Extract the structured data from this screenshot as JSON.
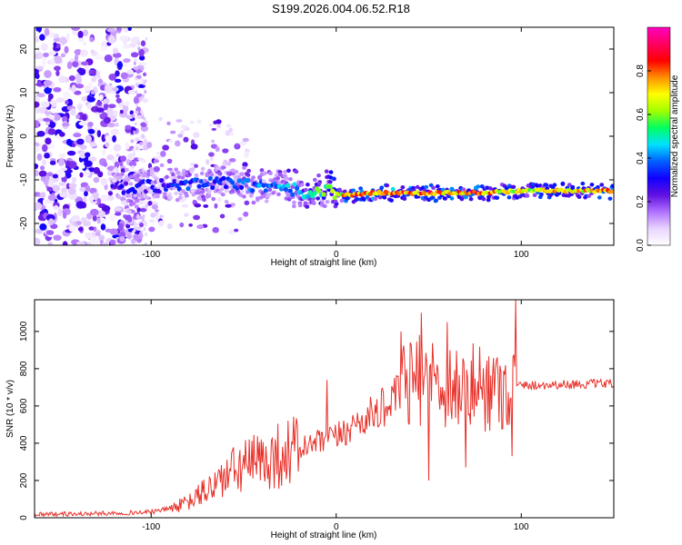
{
  "title": "S199.2026.004.06.52.R18",
  "chart_data": [
    {
      "type": "heatmap",
      "title": "S199.2026.004.06.52.R18",
      "xlabel": "Height of straight line (km)",
      "ylabel": "Frequency (Hz)",
      "xlim": [
        -163,
        150
      ],
      "ylim": [
        -25,
        25
      ],
      "xticks": [
        -100,
        0,
        100
      ],
      "yticks": [
        -20,
        -10,
        0,
        10,
        20
      ],
      "colorbar": {
        "label": "Normalized spectral amplitude",
        "range": [
          0,
          1
        ],
        "ticks": [
          0.0,
          0.2,
          0.4,
          0.6,
          0.8
        ],
        "colormap": [
          "#ffffff",
          "#e8d4ff",
          "#b070ff",
          "#6010e0",
          "#1000ff",
          "#0060ff",
          "#00e0ff",
          "#00ff60",
          "#a0ff00",
          "#ffff00",
          "#ff9000",
          "#ff0000",
          "#ff0060",
          "#ff00c0"
        ]
      },
      "ridge": {
        "x": [
          -120,
          -100,
          -80,
          -60,
          -40,
          -25,
          -15,
          -5,
          5,
          20,
          40,
          60,
          80,
          100,
          120,
          150
        ],
        "freq": [
          -12,
          -11.5,
          -11,
          -10.5,
          -11.5,
          -12,
          -13,
          -12.5,
          -13.5,
          -13,
          -13,
          -13,
          -13,
          -12.5,
          -12.5,
          -12.5
        ],
        "peak_amplitude": [
          0.3,
          0.35,
          0.4,
          0.4,
          0.45,
          0.5,
          0.55,
          0.65,
          0.85,
          0.9,
          0.92,
          0.9,
          0.92,
          0.75,
          0.8,
          0.85
        ]
      }
    },
    {
      "type": "line",
      "xlabel": "Height of straight line (km)",
      "ylabel": "SNR (10 * v/v)",
      "xlim": [
        -163,
        150
      ],
      "ylim": [
        0,
        1170
      ],
      "xticks": [
        -100,
        0,
        100
      ],
      "yticks": [
        0,
        200,
        400,
        600,
        800,
        1000
      ],
      "color": "#e8312a",
      "series": [
        {
          "name": "SNR",
          "x": [
            -163,
            -140,
            -120,
            -100,
            -90,
            -80,
            -70,
            -60,
            -50,
            -40,
            -30,
            -20,
            -10,
            0,
            10,
            20,
            30,
            35,
            40,
            50,
            60,
            70,
            80,
            90,
            97,
            100,
            120,
            150
          ],
          "values": [
            20,
            20,
            25,
            30,
            50,
            80,
            150,
            220,
            280,
            300,
            340,
            370,
            400,
            430,
            500,
            560,
            620,
            680,
            720,
            740,
            720,
            700,
            700,
            700,
            700,
            710,
            715,
            720
          ]
        }
      ],
      "spikes": [
        {
          "x": -5,
          "value": 740
        },
        {
          "x": 35,
          "value": 1000
        },
        {
          "x": 46,
          "value": 1100
        },
        {
          "x": 50,
          "value": 200
        },
        {
          "x": 60,
          "value": 1050
        },
        {
          "x": 70,
          "value": 270
        },
        {
          "x": 95,
          "value": 330
        },
        {
          "x": 97,
          "value": 1170
        }
      ]
    }
  ]
}
